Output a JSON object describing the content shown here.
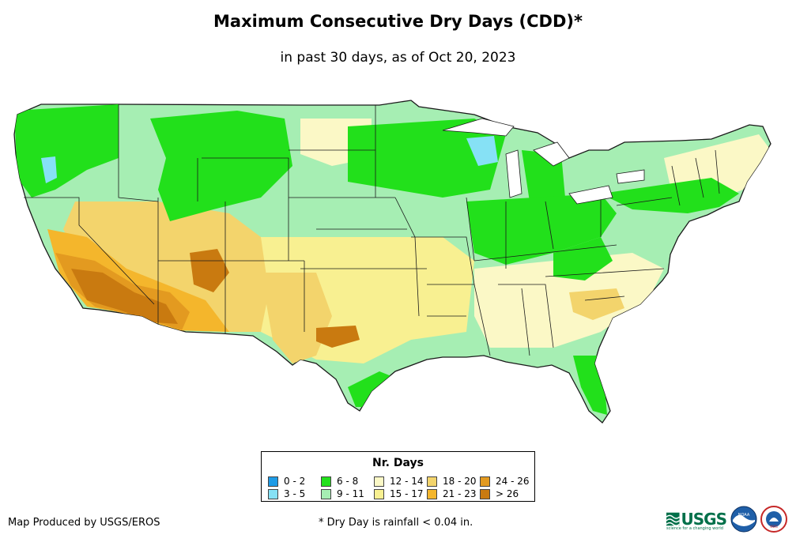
{
  "title": "Maximum Consecutive Dry Days (CDD)*",
  "subtitle": "in past 30 days, as of Oct 20, 2023",
  "legend": {
    "title": "Nr. Days",
    "items": [
      {
        "label": "0 - 2",
        "color": "#1e9be6"
      },
      {
        "label": "3 - 5",
        "color": "#86e1f5"
      },
      {
        "label": "6 - 8",
        "color": "#22e01b"
      },
      {
        "label": "9 - 11",
        "color": "#a6eeb3"
      },
      {
        "label": "12 - 14",
        "color": "#fbf8c6"
      },
      {
        "label": "15 - 17",
        "color": "#f8f091"
      },
      {
        "label": "18 - 20",
        "color": "#f3d46c"
      },
      {
        "label": "21 - 23",
        "color": "#f4b62c"
      },
      {
        "label": "24 - 26",
        "color": "#e39a20"
      },
      {
        "label": "> 26",
        "color": "#c97a10"
      }
    ]
  },
  "credit": "Map Produced by USGS/EROS",
  "footnote": "* Dry Day is rainfall < 0.04 in.",
  "logos": {
    "usgs_text": "USGS",
    "usgs_tagline": "science for a changing world",
    "noaa_text": "NOAA",
    "nws_text": "NWS"
  }
}
